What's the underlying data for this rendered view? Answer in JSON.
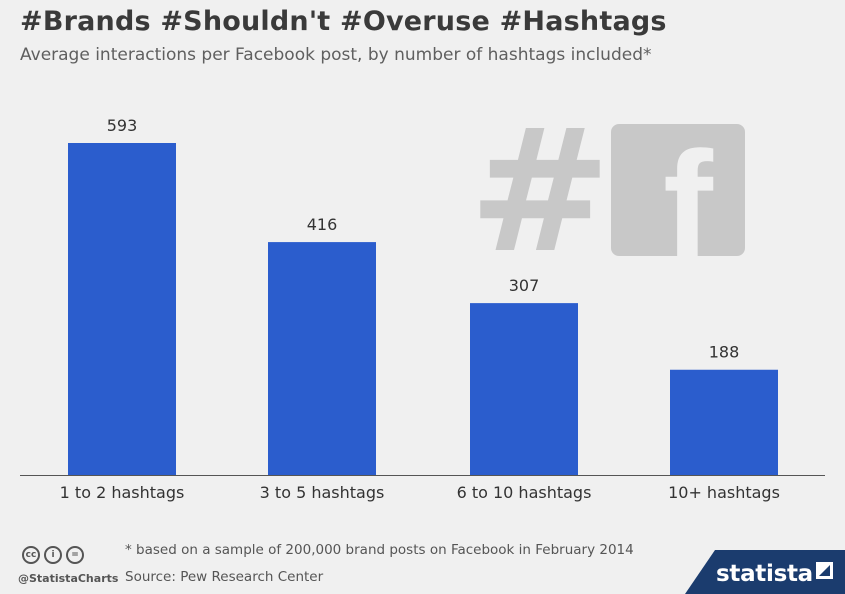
{
  "header": {
    "title": "#Brands #Shouldn't #Overuse #Hashtags",
    "subtitle": "Average interactions per Facebook post, by number of hashtags included*"
  },
  "chart_data": {
    "type": "bar",
    "title": "#Brands #Shouldn't #Overuse #Hashtags",
    "subtitle": "Average interactions per Facebook post, by number of hashtags included*",
    "categories": [
      "1 to 2 hashtags",
      "3 to 5 hashtags",
      "6 to 10 hashtags",
      "10+ hashtags"
    ],
    "values": [
      593,
      416,
      307,
      188
    ],
    "ylim": [
      0,
      620
    ],
    "grid": false,
    "legend": "none",
    "bar_color": "#2b5dcd"
  },
  "illustration": {
    "hash_symbol": "#",
    "facebook_letter": "f",
    "hash_icon": "hashtag-icon",
    "fb_icon": "facebook-logo-icon",
    "color": "#c8c8c8"
  },
  "footer": {
    "license_icons": [
      "creative-commons-icon",
      "attribution-icon",
      "no-derivatives-icon"
    ],
    "license_glyphs": [
      "cc",
      "i",
      "="
    ],
    "handle": "@StatistaCharts",
    "footnote": "* based on a sample of 200,000 brand posts on Facebook in February 2014",
    "source": "Source: Pew Research Center",
    "brand": "statista",
    "brand_color": "#1b3c6e"
  }
}
